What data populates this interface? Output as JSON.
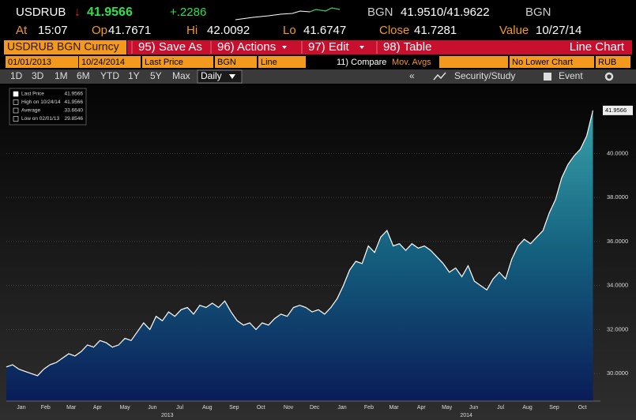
{
  "header": {
    "ticker": "USDRUB",
    "arrow": "↓",
    "last": "41.9566",
    "change": "+.2286",
    "source": "BGN",
    "bid_ask": "41.9510/41.9622",
    "source2": "BGN"
  },
  "quote": [
    {
      "label": "At",
      "value": "15:07"
    },
    {
      "label": "Op",
      "value": "41.7671"
    },
    {
      "label": "Hi",
      "value": "42.0092"
    },
    {
      "label": "Lo",
      "value": "41.6747"
    },
    {
      "label": "Close",
      "value": "41.7281"
    },
    {
      "label": "Value",
      "value": "10/27/14"
    }
  ],
  "menu": {
    "security": "USDRUB BGN Curncy",
    "items": [
      "95) Save As",
      "96) Actions",
      "97) Edit",
      "98) Table"
    ],
    "view": "Line Chart"
  },
  "fields": [
    "01/01/2013",
    "10/24/2014",
    "Last Price",
    "BGN",
    "Line",
    "11) Compare",
    "Mov. Avgs",
    "No Lower Chart",
    "RUB"
  ],
  "ranges": [
    "1D",
    "3D",
    "1M",
    "6M",
    "YTD",
    "1Y",
    "5Y",
    "Max"
  ],
  "period": "Daily",
  "tools": [
    "Security/Study",
    "Event"
  ],
  "chart_data": {
    "type": "area",
    "legend": [
      {
        "label": "Last Price",
        "value": "41.9566"
      },
      {
        "label": "High on 10/24/14",
        "value": "41.9566"
      },
      {
        "label": "Average",
        "value": "33.6640"
      },
      {
        "label": "Low on 02/01/13",
        "value": "29.8546"
      }
    ],
    "values": [
      30.3,
      30.4,
      30.2,
      30.1,
      30.0,
      29.9,
      30.2,
      30.4,
      30.5,
      30.7,
      30.9,
      30.8,
      31.0,
      31.3,
      31.2,
      31.5,
      31.4,
      31.2,
      31.3,
      31.6,
      31.5,
      31.9,
      32.3,
      32.0,
      32.6,
      32.4,
      32.8,
      32.6,
      32.9,
      33.0,
      32.7,
      33.1,
      33.0,
      33.2,
      33.0,
      33.3,
      32.8,
      32.4,
      32.2,
      32.3,
      32.0,
      32.3,
      32.2,
      32.5,
      32.7,
      32.6,
      33.0,
      33.1,
      33.0,
      32.8,
      32.9,
      32.7,
      33.0,
      33.4,
      34.0,
      34.7,
      35.1,
      35.0,
      35.8,
      35.5,
      36.2,
      36.5,
      35.8,
      35.9,
      35.6,
      35.9,
      35.7,
      35.8,
      35.6,
      35.3,
      35.0,
      34.6,
      34.8,
      34.4,
      34.9,
      34.2,
      34.0,
      33.8,
      34.3,
      34.6,
      34.3,
      35.2,
      35.8,
      36.1,
      35.9,
      36.2,
      36.5,
      37.3,
      37.9,
      38.9,
      39.5,
      39.9,
      40.2,
      40.8,
      41.9566
    ],
    "color": "#ffffff",
    "xlim": [
      0,
      95.2
    ],
    "xticks": [
      {
        "value": 2.4,
        "label": "Jan"
      },
      {
        "value": 6.3,
        "label": "Feb"
      },
      {
        "value": 10.4,
        "label": "Mar"
      },
      {
        "value": 14.6,
        "label": "Apr"
      },
      {
        "value": 19.0,
        "label": "May"
      },
      {
        "value": 23.4,
        "label": "Jun"
      },
      {
        "value": 27.8,
        "label": "Jul"
      },
      {
        "value": 32.2,
        "label": "Aug"
      },
      {
        "value": 36.5,
        "label": "Sep"
      },
      {
        "value": 40.8,
        "label": "Oct"
      },
      {
        "value": 45.2,
        "label": "Nov"
      },
      {
        "value": 49.4,
        "label": "Dec"
      },
      {
        "value": 53.8,
        "label": "Jan"
      },
      {
        "value": 58.1,
        "label": "Feb"
      },
      {
        "value": 62.1,
        "label": "Mar"
      },
      {
        "value": 66.5,
        "label": "Apr"
      },
      {
        "value": 70.6,
        "label": "May"
      },
      {
        "value": 74.9,
        "label": "Jun"
      },
      {
        "value": 79.2,
        "label": "Jul"
      },
      {
        "value": 83.5,
        "label": "Aug"
      },
      {
        "value": 87.8,
        "label": "Sep"
      },
      {
        "value": 92.3,
        "label": "Oct"
      }
    ],
    "years": [
      {
        "value": 25.8,
        "label": "2013"
      },
      {
        "value": 73.7,
        "label": "2014"
      }
    ],
    "ylim": [
      28.75,
      43.1
    ],
    "yticks": [
      {
        "value": 30,
        "label": "30.0000"
      },
      {
        "value": 32,
        "label": "32.0000"
      },
      {
        "value": 34,
        "label": "34.0000"
      },
      {
        "value": 36,
        "label": "36.0000"
      },
      {
        "value": 38,
        "label": "38.0000"
      },
      {
        "value": 40,
        "label": "40.0000"
      }
    ],
    "grid": true
  }
}
